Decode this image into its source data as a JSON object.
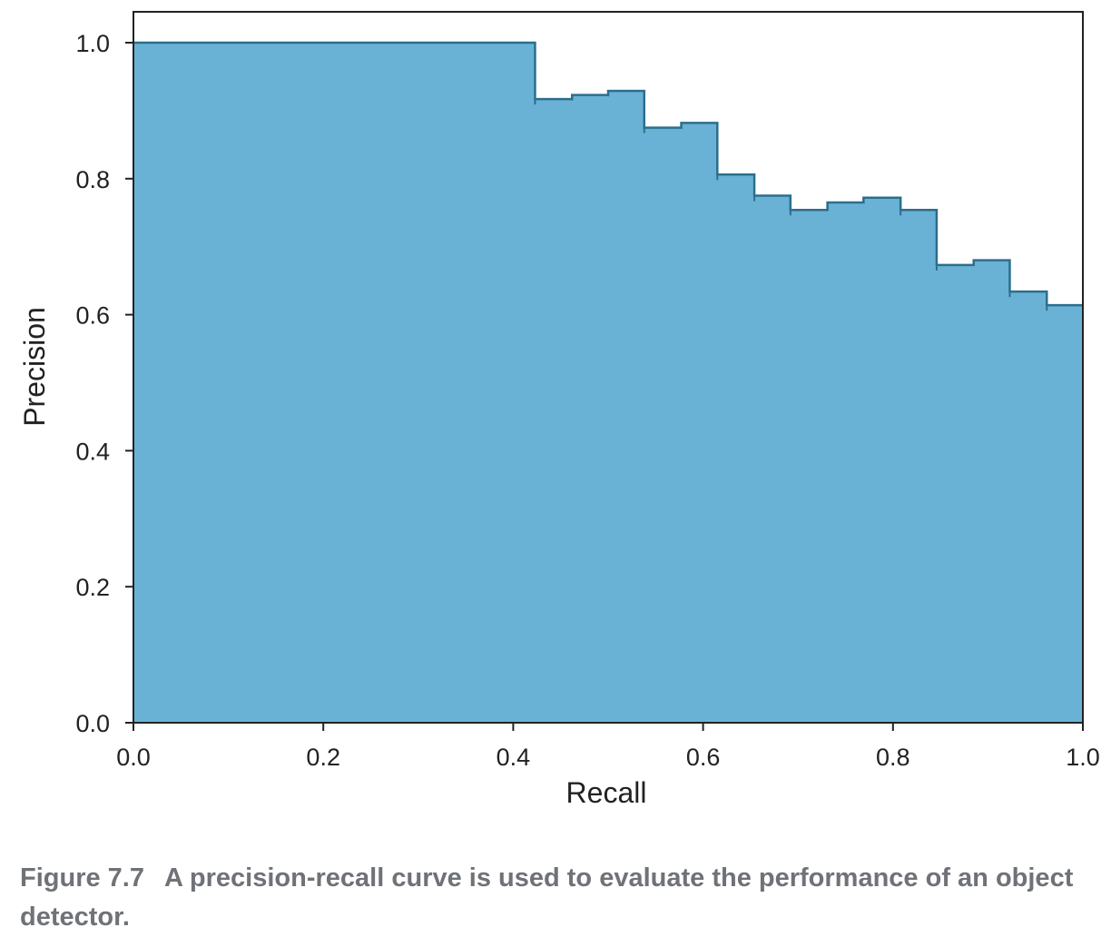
{
  "chart_data": {
    "type": "area",
    "step": "post",
    "xlabel": "Recall",
    "ylabel": "Precision",
    "xlim": [
      0.0,
      1.0
    ],
    "ylim": [
      0.0,
      1.0
    ],
    "xticks": [
      "0.0",
      "0.2",
      "0.4",
      "0.6",
      "0.8",
      "1.0"
    ],
    "yticks": [
      "0.0",
      "0.2",
      "0.4",
      "0.6",
      "0.8",
      "1.0"
    ],
    "grid": false,
    "fill_color": "#6ab2d5",
    "line_color": "#2c6e8c",
    "series": [
      {
        "recall": [
          0.0,
          0.423,
          0.462,
          0.5,
          0.538,
          0.577,
          0.615,
          0.654,
          0.692,
          0.731,
          0.769,
          0.808,
          0.846,
          0.885,
          0.923,
          0.962,
          1.0
        ],
        "precision": [
          1.0,
          0.917,
          0.923,
          0.929,
          0.875,
          0.882,
          0.806,
          0.775,
          0.754,
          0.765,
          0.772,
          0.754,
          0.673,
          0.68,
          0.634,
          0.614,
          0.614
        ]
      }
    ]
  },
  "caption": {
    "figure_number": "Figure 7.7",
    "text": "A precision-recall curve is used to evaluate the performance of an object detector."
  }
}
